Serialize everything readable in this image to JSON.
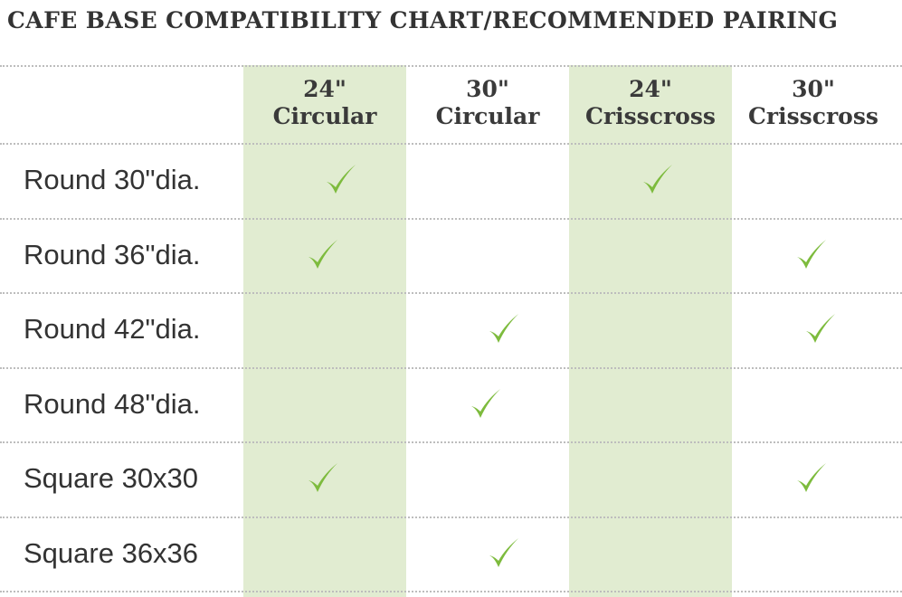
{
  "chart_data": {
    "type": "table",
    "title": "CAFE BASE COMPATIBILITY CHART/RECOMMENDED PAIRING",
    "columns": [
      {
        "size": "24\"",
        "name": "Circular",
        "shaded": true
      },
      {
        "size": "30\"",
        "name": "Circular",
        "shaded": false
      },
      {
        "size": "24\"",
        "name": "Crisscross",
        "shaded": true
      },
      {
        "size": "30\"",
        "name": "Crisscross",
        "shaded": false
      }
    ],
    "rows": [
      {
        "label": "Round 30\"dia.",
        "checks": [
          true,
          false,
          true,
          false
        ]
      },
      {
        "label": "Round 36\"dia.",
        "checks": [
          true,
          false,
          false,
          true
        ]
      },
      {
        "label": "Round 42\"dia.",
        "checks": [
          false,
          true,
          false,
          true
        ]
      },
      {
        "label": "Round 48\"dia.",
        "checks": [
          false,
          true,
          false,
          false
        ]
      },
      {
        "label": "Square 30x30",
        "checks": [
          true,
          false,
          false,
          true
        ]
      },
      {
        "label": "Square 36x36",
        "checks": [
          false,
          true,
          false,
          false
        ]
      }
    ],
    "check_icon": "check-mark-icon",
    "colors": {
      "shade": "#e1ecd1",
      "check": "#7dbb3d",
      "rule": "#bdbdbd"
    }
  }
}
